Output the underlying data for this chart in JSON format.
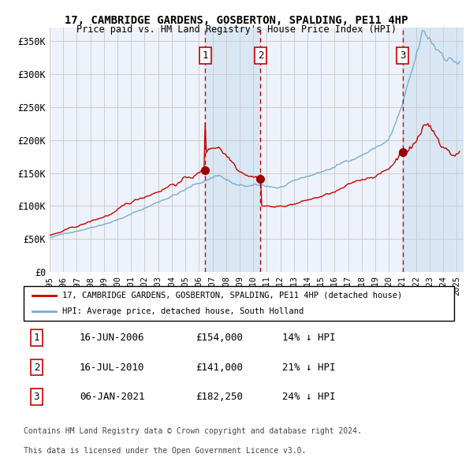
{
  "title": "17, CAMBRIDGE GARDENS, GOSBERTON, SPALDING, PE11 4HP",
  "subtitle": "Price paid vs. HM Land Registry's House Price Index (HPI)",
  "legend_line1": "17, CAMBRIDGE GARDENS, GOSBERTON, SPALDING, PE11 4HP (detached house)",
  "legend_line2": "HPI: Average price, detached house, South Holland",
  "footer1": "Contains HM Land Registry data © Crown copyright and database right 2024.",
  "footer2": "This data is licensed under the Open Government Licence v3.0.",
  "transactions": [
    {
      "num": 1,
      "date": "16-JUN-2006",
      "price": 154000,
      "pct": "14%",
      "dir": "↓"
    },
    {
      "num": 2,
      "date": "16-JUL-2010",
      "price": 141000,
      "pct": "21%",
      "dir": "↓"
    },
    {
      "num": 3,
      "date": "06-JAN-2021",
      "price": 182250,
      "pct": "24%",
      "dir": "↓"
    }
  ],
  "transaction_dates_decimal": [
    2006.46,
    2010.54,
    2021.02
  ],
  "transaction_prices": [
    154000,
    141000,
    182250
  ],
  "ylim": [
    0,
    370000
  ],
  "yticks": [
    0,
    50000,
    100000,
    150000,
    200000,
    250000,
    300000,
    350000
  ],
  "ytick_labels": [
    "£0",
    "£50K",
    "£100K",
    "£150K",
    "£200K",
    "£250K",
    "£300K",
    "£350K"
  ],
  "xstart": 1995.0,
  "xend": 2025.5,
  "grid_color": "#cccccc",
  "bg_color": "#eef2fb",
  "plot_bg": "#ffffff",
  "hpi_color": "#7aadd4",
  "price_color": "#cc0000",
  "vline_color": "#cc0000",
  "shade_color": "#cce0f0",
  "marker_color": "#990000",
  "box_color": "#cc0000"
}
